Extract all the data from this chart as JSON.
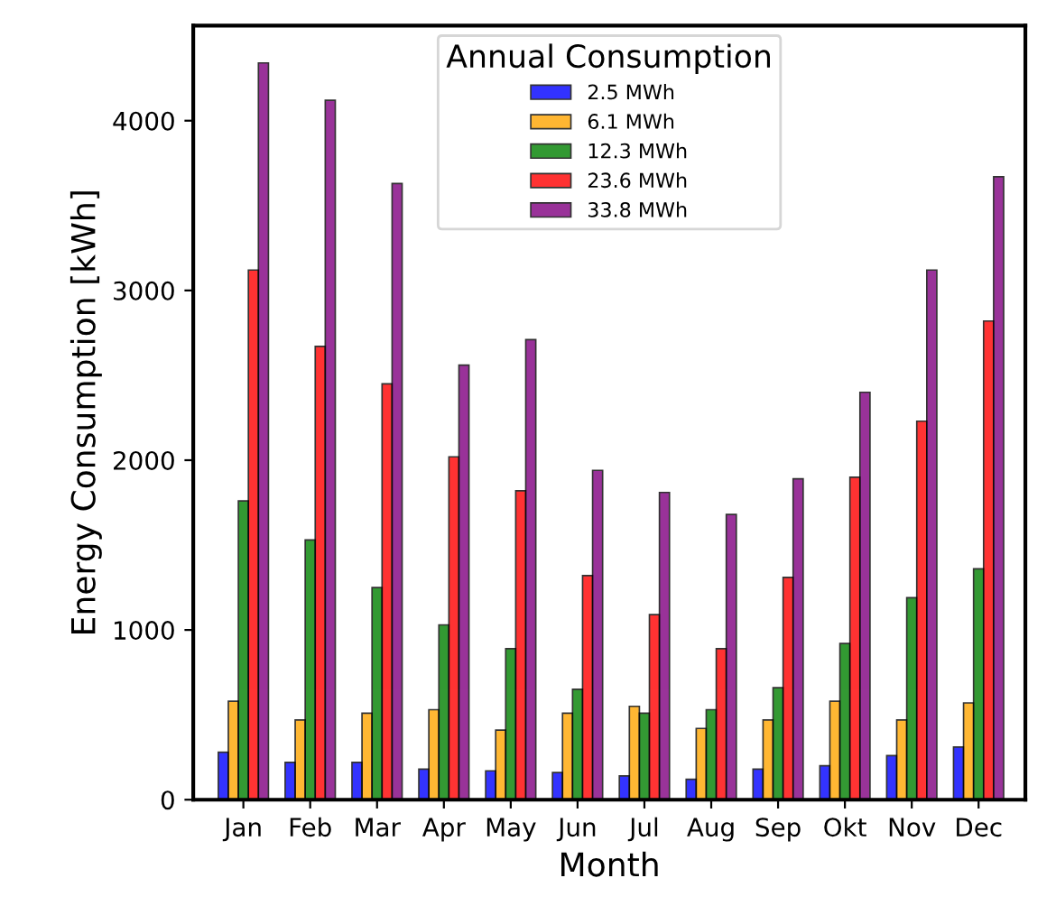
{
  "chart_data": {
    "type": "bar",
    "xlabel": "Month",
    "ylabel": "Energy Consumption [kWh]",
    "legend_title": "Annual Consumption",
    "legend": "top",
    "grid": false,
    "categories": [
      "Jan",
      "Feb",
      "Mar",
      "Apr",
      "May",
      "Jun",
      "Jul",
      "Aug",
      "Sep",
      "Okt",
      "Nov",
      "Dec"
    ],
    "ylim": [
      0,
      4560
    ],
    "yticks": [
      0,
      1000,
      2000,
      3000,
      4000
    ],
    "series": [
      {
        "name": "2.5 MWh",
        "color": "#0000ff",
        "values": [
          280,
          220,
          220,
          180,
          170,
          160,
          140,
          120,
          180,
          200,
          260,
          310
        ]
      },
      {
        "name": "6.1 MWh",
        "color": "#ffa500",
        "values": [
          580,
          470,
          510,
          530,
          410,
          510,
          550,
          420,
          470,
          580,
          470,
          570
        ]
      },
      {
        "name": "12.3 MWh",
        "color": "#008000",
        "values": [
          1760,
          1530,
          1250,
          1030,
          890,
          650,
          510,
          530,
          660,
          920,
          1190,
          1360
        ]
      },
      {
        "name": "23.6 MWh",
        "color": "#ff0000",
        "values": [
          3120,
          2670,
          2450,
          2020,
          1820,
          1320,
          1090,
          890,
          1310,
          1900,
          2230,
          2820
        ]
      },
      {
        "name": "33.8 MWh",
        "color": "#800080",
        "values": [
          4340,
          4120,
          3630,
          2560,
          2710,
          1940,
          1810,
          1680,
          1890,
          2400,
          3120,
          3670
        ]
      }
    ]
  }
}
